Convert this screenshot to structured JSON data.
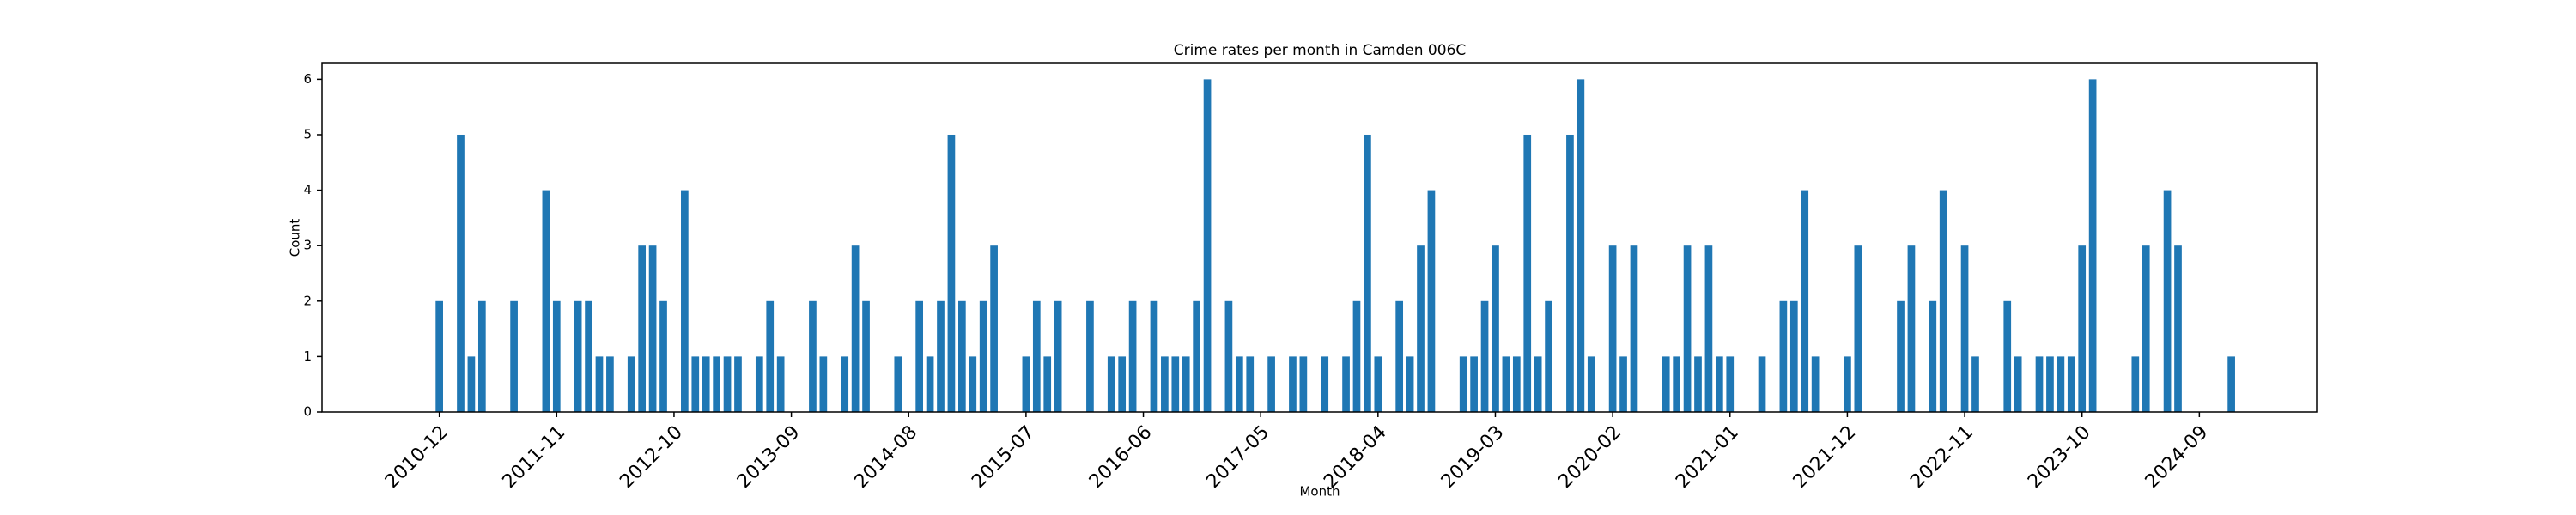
{
  "chart_data": {
    "type": "bar",
    "title": "Crime rates per month in Camden 006C",
    "xlabel": "Month",
    "ylabel": "Count",
    "color": "#1f77b4",
    "x": [
      "2010-12",
      "2011-02",
      "2011-03",
      "2011-04",
      "2011-07",
      "2011-10",
      "2011-11",
      "2012-01",
      "2012-02",
      "2012-03",
      "2012-04",
      "2012-06",
      "2012-07",
      "2012-08",
      "2012-09",
      "2012-11",
      "2012-12",
      "2013-01",
      "2013-02",
      "2013-03",
      "2013-04",
      "2013-06",
      "2013-07",
      "2013-08",
      "2013-11",
      "2013-12",
      "2014-02",
      "2014-03",
      "2014-04",
      "2014-07",
      "2014-09",
      "2014-10",
      "2014-11",
      "2014-12",
      "2015-01",
      "2015-02",
      "2015-03",
      "2015-04",
      "2015-07",
      "2015-08",
      "2015-09",
      "2015-10",
      "2016-01",
      "2016-03",
      "2016-04",
      "2016-05",
      "2016-07",
      "2016-08",
      "2016-09",
      "2016-10",
      "2016-11",
      "2016-12",
      "2017-02",
      "2017-03",
      "2017-04",
      "2017-06",
      "2017-08",
      "2017-09",
      "2017-11",
      "2018-01",
      "2018-02",
      "2018-03",
      "2018-04",
      "2018-06",
      "2018-07",
      "2018-08",
      "2018-09",
      "2018-12",
      "2019-01",
      "2019-02",
      "2019-03",
      "2019-04",
      "2019-05",
      "2019-06",
      "2019-07",
      "2019-08",
      "2019-10",
      "2019-11",
      "2019-12",
      "2020-02",
      "2020-03",
      "2020-04",
      "2020-07",
      "2020-08",
      "2020-09",
      "2020-10",
      "2020-11",
      "2020-12",
      "2021-01",
      "2021-04",
      "2021-06",
      "2021-07",
      "2021-08",
      "2021-09",
      "2021-12",
      "2022-01",
      "2022-05",
      "2022-06",
      "2022-08",
      "2022-09",
      "2022-11",
      "2022-12",
      "2023-03",
      "2023-04",
      "2023-06",
      "2023-07",
      "2023-08",
      "2023-09",
      "2023-10",
      "2023-11",
      "2024-03",
      "2024-04",
      "2024-06",
      "2024-07",
      "2024-12"
    ],
    "values": [
      2,
      5,
      1,
      2,
      2,
      4,
      2,
      2,
      2,
      1,
      1,
      1,
      3,
      3,
      2,
      4,
      1,
      1,
      1,
      1,
      1,
      1,
      2,
      1,
      2,
      1,
      1,
      3,
      2,
      1,
      2,
      1,
      2,
      5,
      2,
      1,
      2,
      3,
      1,
      2,
      1,
      2,
      2,
      1,
      1,
      2,
      2,
      1,
      1,
      1,
      2,
      6,
      2,
      1,
      1,
      1,
      1,
      1,
      1,
      1,
      2,
      5,
      1,
      2,
      1,
      3,
      4,
      1,
      1,
      2,
      3,
      1,
      1,
      5,
      1,
      2,
      5,
      6,
      1,
      3,
      1,
      3,
      1,
      1,
      3,
      1,
      3,
      1,
      1,
      1,
      2,
      2,
      4,
      1,
      1,
      3,
      2,
      3,
      2,
      4,
      3,
      1,
      2,
      1,
      1,
      1,
      1,
      1,
      3,
      6,
      1,
      3,
      4,
      3,
      1
    ],
    "xlim": [
      "2010-01",
      "2025-08"
    ],
    "xticks": [
      "2010-12",
      "2011-11",
      "2012-10",
      "2013-09",
      "2014-08",
      "2015-07",
      "2016-06",
      "2017-05",
      "2018-04",
      "2019-03",
      "2020-02",
      "2021-01",
      "2021-12",
      "2022-11",
      "2023-10",
      "2024-09"
    ],
    "ylim": [
      0,
      6.3
    ],
    "yticks": [
      0,
      1,
      2,
      3,
      4,
      5,
      6
    ],
    "grid": false
  }
}
